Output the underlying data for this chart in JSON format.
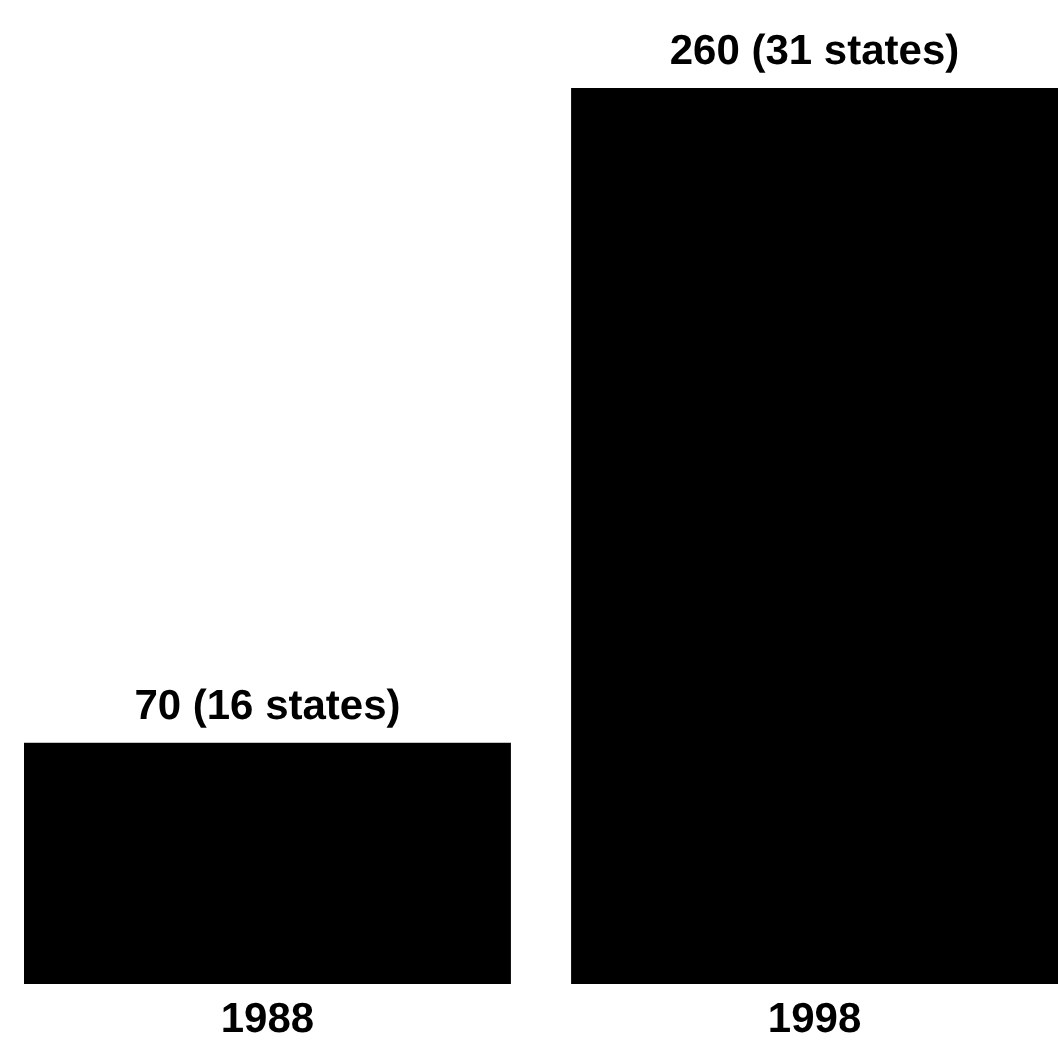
{
  "chart_data": {
    "type": "bar",
    "categories": [
      "1988",
      "1998"
    ],
    "values": [
      70,
      260
    ],
    "color": "#000000",
    "value_labels": [
      "70 (16 states)",
      "260 (31 states)"
    ]
  }
}
